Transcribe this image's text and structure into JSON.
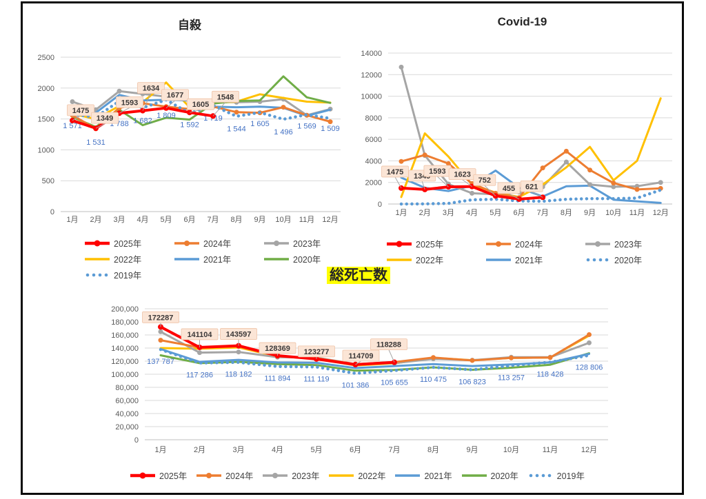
{
  "frame": {
    "border_color": "#0a0a0a",
    "background": "#ffffff"
  },
  "colors": {
    "red": "#FF0000",
    "orange": "#ED7D31",
    "gray": "#A5A5A5",
    "yellow": "#FFC000",
    "blue": "#5B9BD5",
    "green": "#70AD47",
    "label_box_fill": "#FBE5D6",
    "label_box_border": "#EFC4A8",
    "blue_label_text": "#4472C4",
    "gridline": "#D9D9D9",
    "axis_line": "#BFBFBF",
    "title_highlight": "#FFFF00"
  },
  "chart_data": [
    {
      "type": "line",
      "title": "自殺",
      "categories": [
        "1月",
        "2月",
        "3月",
        "4月",
        "5月",
        "6月",
        "7月",
        "8月",
        "9月",
        "10月",
        "11月",
        "12月"
      ],
      "yticks": [
        "0",
        "500",
        "1000",
        "1500",
        "2000",
        "2500"
      ],
      "ylim": [
        0,
        2500
      ],
      "grid": true,
      "legend_position": "bottom",
      "series": [
        {
          "name": "2025年",
          "color": "#FF0000",
          "style": "solid",
          "marker": true,
          "width": 4,
          "z": 7,
          "values": [
            1475,
            1349,
            1593,
            1634,
            1677,
            1605,
            1548
          ],
          "labels": [
            "1475",
            "1349",
            "1593",
            "1634",
            "1677",
            "1605",
            "1548"
          ],
          "label_style": "boxed"
        },
        {
          "name": "2024年",
          "color": "#ED7D31",
          "style": "solid",
          "marker": true,
          "width": 3,
          "z": 5,
          "values": [
            1560,
            1340,
            1680,
            1755,
            1700,
            1660,
            1700,
            1610,
            1600,
            1690,
            1560,
            1455
          ]
        },
        {
          "name": "2023年",
          "color": "#A5A5A5",
          "style": "solid",
          "marker": true,
          "width": 3,
          "z": 1,
          "values": [
            1780,
            1650,
            1950,
            1905,
            1860,
            1790,
            1780,
            1770,
            1780,
            1820,
            1560,
            1660
          ]
        },
        {
          "name": "2022年",
          "color": "#FFC000",
          "style": "solid",
          "marker": false,
          "width": 3,
          "z": 2,
          "values": [
            1580,
            1500,
            1710,
            1770,
            2090,
            1690,
            1760,
            1780,
            1900,
            1840,
            1780,
            1765
          ]
        },
        {
          "name": "2021年",
          "color": "#5B9BD5",
          "style": "solid",
          "marker": false,
          "width": 3,
          "z": 3,
          "values": [
            1580,
            1600,
            1890,
            1800,
            1810,
            1800,
            1700,
            1690,
            1700,
            1680,
            1550,
            1650
          ]
        },
        {
          "name": "2020年",
          "color": "#70AD47",
          "style": "solid",
          "marker": false,
          "width": 3,
          "z": 4,
          "values": [
            1530,
            1370,
            1650,
            1400,
            1520,
            1490,
            1750,
            1790,
            1800,
            2190,
            1850,
            1760
          ]
        },
        {
          "name": "2019年",
          "color": "#5B9BD5",
          "style": "dotted",
          "marker": false,
          "width": 4,
          "z": 6,
          "values": [
            1571,
            1531,
            1788,
            1682,
            1809,
            1592,
            1719,
            1544,
            1605,
            1496,
            1569,
            1509
          ],
          "labels": [
            "1 571",
            "1 531",
            "1 788",
            "1 682",
            "1 809",
            "1 592",
            "1 719",
            "1 544",
            "1 605",
            "1 496",
            "1 569",
            "1 509"
          ],
          "label_style": "plain"
        }
      ]
    },
    {
      "type": "line",
      "title": "Covid-19",
      "categories": [
        "1月",
        "2月",
        "3月",
        "4月",
        "5月",
        "6月",
        "7月",
        "8月",
        "9月",
        "10月",
        "11月",
        "12月"
      ],
      "yticks": [
        "0",
        "2000",
        "4000",
        "6000",
        "8000",
        "10000",
        "12000",
        "14000"
      ],
      "ylim": [
        0,
        14000
      ],
      "grid": true,
      "legend_position": "bottom",
      "series": [
        {
          "name": "2025年",
          "color": "#FF0000",
          "style": "solid",
          "marker": true,
          "width": 4,
          "z": 7,
          "values": [
            1475,
            1349,
            1593,
            1623,
            752,
            455,
            621
          ],
          "labels": [
            "1475",
            "1349",
            "1593",
            "1623",
            "752",
            "455",
            "621"
          ],
          "label_style": "boxed"
        },
        {
          "name": "2024年",
          "color": "#ED7D31",
          "style": "solid",
          "marker": true,
          "width": 3,
          "z": 5,
          "values": [
            3950,
            4550,
            3750,
            1900,
            1000,
            600,
            3350,
            4900,
            3150,
            1950,
            1350,
            1450
          ]
        },
        {
          "name": "2023年",
          "color": "#A5A5A5",
          "style": "solid",
          "marker": true,
          "width": 3,
          "z": 2,
          "values": [
            12700,
            4500,
            1850,
            1000,
            900,
            1100,
            1600,
            3900,
            1800,
            1600,
            1650,
            2000
          ]
        },
        {
          "name": "2022年",
          "color": "#FFC000",
          "style": "solid",
          "marker": false,
          "width": 3,
          "z": 4,
          "values": [
            650,
            6550,
            4400,
            1800,
            1050,
            650,
            1800,
            3400,
            5300,
            2200,
            4000,
            9800
          ]
        },
        {
          "name": "2021年",
          "color": "#5B9BD5",
          "style": "solid",
          "marker": false,
          "width": 3,
          "z": 1,
          "values": [
            2450,
            1500,
            1200,
            1700,
            3100,
            1500,
            700,
            1650,
            1700,
            400,
            250,
            100
          ]
        },
        {
          "name": "2020年",
          "color": "#5B9BD5",
          "style": "dotted",
          "marker": false,
          "width": 4,
          "z": 6,
          "values": [
            0,
            10,
            60,
            390,
            440,
            280,
            250,
            440,
            500,
            500,
            550,
            1300
          ]
        }
      ]
    },
    {
      "type": "line",
      "title": "総死亡数",
      "categories": [
        "1月",
        "2月",
        "3月",
        "4月",
        "5月",
        "6月",
        "7月",
        "8月",
        "9月",
        "10月",
        "11月",
        "12月"
      ],
      "yticks": [
        "0",
        "20,000",
        "40,000",
        "60,000",
        "80,000",
        "100,000",
        "120,000",
        "140,000",
        "160,000",
        "180,000",
        "200,000"
      ],
      "ylim": [
        0,
        200000
      ],
      "grid": true,
      "legend_position": "bottom",
      "series": [
        {
          "name": "2025年",
          "color": "#FF0000",
          "style": "solid",
          "marker": true,
          "width": 4,
          "z": 7,
          "values": [
            172287,
            141104,
            143597,
            128369,
            123277,
            114709,
            118288
          ],
          "labels": [
            "172287",
            "141104",
            "143597",
            "128369",
            "123277",
            "114709",
            "118288"
          ],
          "label_style": "boxed"
        },
        {
          "name": "2024年",
          "color": "#ED7D31",
          "style": "solid",
          "marker": true,
          "width": 3,
          "z": 6,
          "values": [
            152000,
            141000,
            142500,
            127500,
            124500,
            115500,
            118500,
            125500,
            121000,
            125000,
            125500,
            160500
          ]
        },
        {
          "name": "2023年",
          "color": "#A5A5A5",
          "style": "solid",
          "marker": true,
          "width": 3,
          "z": 2,
          "values": [
            165000,
            133000,
            134000,
            126000,
            125500,
            115500,
            117000,
            123500,
            121500,
            126000,
            126000,
            148000
          ]
        },
        {
          "name": "2022年",
          "color": "#FFC000",
          "style": "solid",
          "marker": false,
          "width": 3,
          "z": 1,
          "values": [
            140000,
            139000,
            141000,
            127000,
            124000,
            113500,
            116500,
            125000,
            121500,
            125000,
            125500,
            159000
          ]
        },
        {
          "name": "2021年",
          "color": "#5B9BD5",
          "style": "solid",
          "marker": false,
          "width": 3,
          "z": 4,
          "values": [
            138500,
            119000,
            122000,
            118000,
            117500,
            109500,
            112500,
            115500,
            112500,
            115000,
            118000,
            131000
          ]
        },
        {
          "name": "2020年",
          "color": "#70AD47",
          "style": "solid",
          "marker": false,
          "width": 3,
          "z": 3,
          "values": [
            129000,
            117000,
            119000,
            115500,
            114000,
            105500,
            106500,
            110500,
            106800,
            110000,
            114500,
            132000
          ]
        },
        {
          "name": "2019年",
          "color": "#5B9BD5",
          "style": "dotted",
          "marker": false,
          "width": 4,
          "z": 5,
          "values": [
            137787,
            117286,
            118182,
            111894,
            111119,
            101386,
            105655,
            110475,
            106823,
            113257,
            118428,
            128806
          ],
          "labels": [
            "137 787",
            "117 286",
            "118 182",
            "111 894",
            "111 119",
            "101 386",
            "105 655",
            "110 475",
            "106 823",
            "113 257",
            "118 428",
            "128 806"
          ],
          "label_style": "plain"
        }
      ]
    }
  ]
}
